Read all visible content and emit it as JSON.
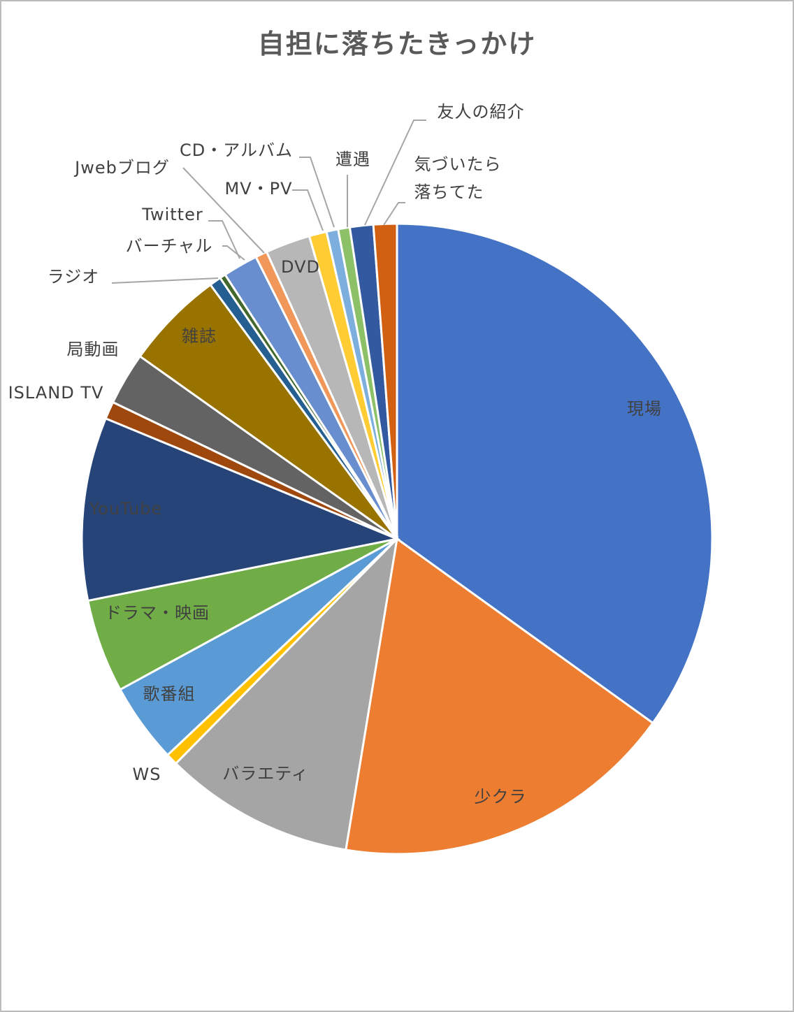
{
  "chart_data": {
    "type": "pie",
    "title": "自担に落ちたきっかけ",
    "categories": [
      "現場",
      "少クラ",
      "バラエティ",
      "WS",
      "歌番組",
      "ドラマ・映画",
      "YouTube",
      "ISLAND TV",
      "局動画",
      "雑誌",
      "ラジオ",
      "バーチャル",
      "Twitter",
      "Jwebブログ",
      "DVD",
      "MV・PV",
      "CD・アルバム",
      "遭遇",
      "友人の紹介",
      "気づいたら\n落ちてた"
    ],
    "values": [
      35,
      17.7,
      9.8,
      0.6,
      4.1,
      4.8,
      9.4,
      0.9,
      2.7,
      5.1,
      0.6,
      0.3,
      1.8,
      0.6,
      2.3,
      0.9,
      0.6,
      0.6,
      1.2,
      1.2
    ],
    "colors": [
      "#4472c4",
      "#ed7d31",
      "#a5a5a5",
      "#ffc000",
      "#5b9bd5",
      "#70ad47",
      "#264478",
      "#9e480e",
      "#636363",
      "#997300",
      "#255e91",
      "#43682b",
      "#698ed0",
      "#f1975a",
      "#b7b7b7",
      "#ffcd33",
      "#7cafdd",
      "#8cc168",
      "#335aa1",
      "#d26012"
    ]
  }
}
